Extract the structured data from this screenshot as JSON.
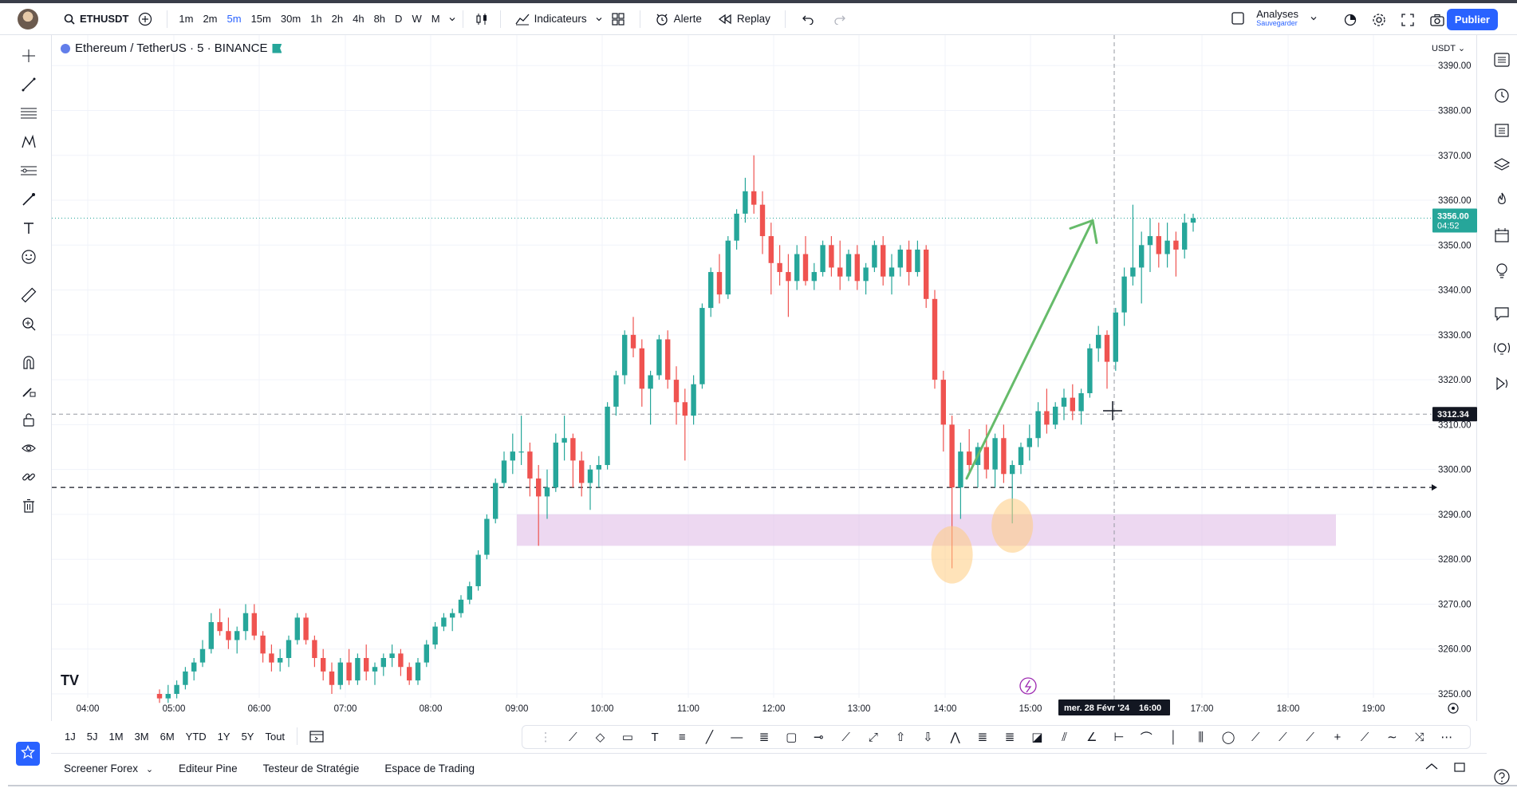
{
  "topbar": {
    "symbol": "ETHUSDT",
    "timeframes": [
      "1m",
      "2m",
      "5m",
      "15m",
      "30m",
      "1h",
      "2h",
      "4h",
      "8h",
      "D",
      "W",
      "M"
    ],
    "active_timeframe": "5m",
    "indicators_label": "Indicateurs",
    "alert_label": "Alerte",
    "replay_label": "Replay",
    "analyses_label": "Analyses",
    "analyses_sub": "Sauvegarder",
    "publish_label": "Publier"
  },
  "legend": {
    "title": "Ethereum / TetherUS · 5 · BINANCE",
    "currency": "USDT"
  },
  "price_scale": {
    "ticks": [
      "3390.00",
      "3380.00",
      "3370.00",
      "3360.00",
      "3350.00",
      "3340.00",
      "3330.00",
      "3320.00",
      "3310.00",
      "3300.00",
      "3290.00",
      "3280.00",
      "3270.00",
      "3260.00",
      "3250.00"
    ],
    "last_price": "3356.00",
    "countdown": "04:52",
    "crosshair_price": "3312.34"
  },
  "time_scale": {
    "ticks": [
      "04:00",
      "05:00",
      "06:00",
      "07:00",
      "08:00",
      "09:00",
      "10:00",
      "11:00",
      "12:00",
      "13:00",
      "14:00",
      "15:00",
      "17:00",
      "18:00",
      "19:00"
    ],
    "crosshair_date": "mer. 28 Févr '24",
    "crosshair_time": "16:00"
  },
  "range_buttons": [
    "1J",
    "5J",
    "1M",
    "3M",
    "6M",
    "YTD",
    "1Y",
    "5Y",
    "Tout"
  ],
  "bottom_tabs": [
    "Screener Forex",
    "Editeur Pine",
    "Testeur de Stratégie",
    "Espace de Trading"
  ],
  "colors": {
    "up": "#26a69a",
    "down": "#ef5350",
    "zone": "#e1bee7",
    "highlight": "#ffcc80",
    "arrow": "#66bb6a",
    "accent": "#2962ff"
  },
  "chart_data": {
    "type": "candlestick",
    "xlabel": "",
    "ylabel": "",
    "ylim": [
      3248,
      3392
    ],
    "support_zone": [
      3283,
      3290
    ],
    "dashed_level": 3296,
    "crosshair_price": 3312.34,
    "last_price": 3356,
    "candles": [
      [
        3250,
        3251,
        3248,
        3249
      ],
      [
        3249,
        3252,
        3248,
        3250
      ],
      [
        3250,
        3253,
        3249,
        3252
      ],
      [
        3252,
        3256,
        3251,
        3255
      ],
      [
        3255,
        3258,
        3253,
        3257
      ],
      [
        3257,
        3262,
        3256,
        3260
      ],
      [
        3260,
        3268,
        3259,
        3266
      ],
      [
        3266,
        3269,
        3263,
        3264
      ],
      [
        3264,
        3267,
        3260,
        3262
      ],
      [
        3262,
        3265,
        3259,
        3264
      ],
      [
        3264,
        3270,
        3262,
        3268
      ],
      [
        3268,
        3270,
        3262,
        3263
      ],
      [
        3263,
        3264,
        3257,
        3259
      ],
      [
        3259,
        3261,
        3255,
        3257
      ],
      [
        3257,
        3260,
        3255,
        3258
      ],
      [
        3258,
        3263,
        3256,
        3262
      ],
      [
        3262,
        3268,
        3261,
        3267
      ],
      [
        3267,
        3268,
        3261,
        3262
      ],
      [
        3262,
        3263,
        3256,
        3258
      ],
      [
        3258,
        3260,
        3253,
        3255
      ],
      [
        3255,
        3257,
        3250,
        3252
      ],
      [
        3252,
        3258,
        3251,
        3257
      ],
      [
        3257,
        3260,
        3252,
        3253
      ],
      [
        3253,
        3259,
        3252,
        3258
      ],
      [
        3258,
        3261,
        3253,
        3255
      ],
      [
        3255,
        3257,
        3252,
        3256
      ],
      [
        3256,
        3259,
        3254,
        3258
      ],
      [
        3258,
        3261,
        3256,
        3259
      ],
      [
        3259,
        3260,
        3254,
        3256
      ],
      [
        3256,
        3257,
        3252,
        3253
      ],
      [
        3253,
        3258,
        3252,
        3257
      ],
      [
        3257,
        3262,
        3256,
        3261
      ],
      [
        3261,
        3266,
        3260,
        3265
      ],
      [
        3265,
        3268,
        3264,
        3267
      ],
      [
        3267,
        3269,
        3264,
        3268
      ],
      [
        3268,
        3272,
        3267,
        3271
      ],
      [
        3271,
        3275,
        3270,
        3274
      ],
      [
        3274,
        3282,
        3273,
        3281
      ],
      [
        3281,
        3290,
        3280,
        3289
      ],
      [
        3289,
        3298,
        3288,
        3297
      ],
      [
        3297,
        3304,
        3296,
        3302
      ],
      [
        3302,
        3308,
        3299,
        3304
      ],
      [
        3304,
        3312,
        3301,
        3304
      ],
      [
        3304,
        3306,
        3294,
        3298
      ],
      [
        3298,
        3301,
        3283,
        3294
      ],
      [
        3294,
        3300,
        3289,
        3296
      ],
      [
        3296,
        3308,
        3295,
        3306
      ],
      [
        3306,
        3312,
        3302,
        3307
      ],
      [
        3307,
        3308,
        3296,
        3302
      ],
      [
        3302,
        3304,
        3294,
        3297
      ],
      [
        3297,
        3301,
        3291,
        3300
      ],
      [
        3300,
        3303,
        3296,
        3301
      ],
      [
        3301,
        3315,
        3300,
        3314
      ],
      [
        3314,
        3322,
        3312,
        3321
      ],
      [
        3321,
        3331,
        3319,
        3330
      ],
      [
        3330,
        3334,
        3325,
        3327
      ],
      [
        3327,
        3329,
        3314,
        3318
      ],
      [
        3318,
        3322,
        3310,
        3321
      ],
      [
        3321,
        3330,
        3320,
        3329
      ],
      [
        3329,
        3331,
        3318,
        3320
      ],
      [
        3320,
        3323,
        3310,
        3315
      ],
      [
        3315,
        3318,
        3302,
        3312
      ],
      [
        3312,
        3321,
        3310,
        3319
      ],
      [
        3319,
        3337,
        3318,
        3336
      ],
      [
        3336,
        3345,
        3334,
        3344
      ],
      [
        3344,
        3348,
        3337,
        3339
      ],
      [
        3339,
        3352,
        3338,
        3351
      ],
      [
        3351,
        3358,
        3349,
        3357
      ],
      [
        3357,
        3365,
        3355,
        3362
      ],
      [
        3362,
        3370,
        3357,
        3359
      ],
      [
        3359,
        3362,
        3348,
        3352
      ],
      [
        3352,
        3355,
        3339,
        3346
      ],
      [
        3346,
        3350,
        3341,
        3344
      ],
      [
        3344,
        3348,
        3334,
        3342
      ],
      [
        3342,
        3350,
        3340,
        3348
      ],
      [
        3348,
        3352,
        3341,
        3342
      ],
      [
        3342,
        3346,
        3340,
        3344
      ],
      [
        3344,
        3351,
        3343,
        3350
      ],
      [
        3350,
        3352,
        3343,
        3345
      ],
      [
        3345,
        3351,
        3340,
        3343
      ],
      [
        3343,
        3349,
        3342,
        3348
      ],
      [
        3348,
        3350,
        3340,
        3342
      ],
      [
        3342,
        3346,
        3339,
        3345
      ],
      [
        3345,
        3351,
        3344,
        3350
      ],
      [
        3350,
        3352,
        3341,
        3343
      ],
      [
        3343,
        3348,
        3339,
        3345
      ],
      [
        3345,
        3350,
        3343,
        3349
      ],
      [
        3349,
        3351,
        3341,
        3344
      ],
      [
        3344,
        3351,
        3343,
        3349
      ],
      [
        3349,
        3350,
        3336,
        3338
      ],
      [
        3338,
        3340,
        3318,
        3320
      ],
      [
        3320,
        3322,
        3304,
        3310
      ],
      [
        3310,
        3312,
        3278,
        3296
      ],
      [
        3296,
        3306,
        3289,
        3304
      ],
      [
        3304,
        3309,
        3299,
        3301
      ],
      [
        3301,
        3306,
        3296,
        3305
      ],
      [
        3305,
        3310,
        3298,
        3300
      ],
      [
        3300,
        3308,
        3296,
        3307
      ],
      [
        3307,
        3310,
        3297,
        3299
      ],
      [
        3299,
        3302,
        3288,
        3301
      ],
      [
        3301,
        3306,
        3299,
        3305
      ],
      [
        3305,
        3310,
        3302,
        3307
      ],
      [
        3307,
        3315,
        3305,
        3313
      ],
      [
        3313,
        3318,
        3308,
        3310
      ],
      [
        3310,
        3315,
        3309,
        3314
      ],
      [
        3314,
        3318,
        3311,
        3316
      ],
      [
        3316,
        3319,
        3311,
        3313
      ],
      [
        3313,
        3318,
        3310,
        3317
      ],
      [
        3317,
        3328,
        3316,
        3327
      ],
      [
        3327,
        3332,
        3324,
        3330
      ],
      [
        3330,
        3331,
        3318,
        3324
      ],
      [
        3324,
        3336,
        3322,
        3335
      ],
      [
        3335,
        3345,
        3332,
        3343
      ],
      [
        3343,
        3359,
        3341,
        3345
      ],
      [
        3345,
        3353,
        3337,
        3350
      ],
      [
        3350,
        3356,
        3344,
        3352
      ],
      [
        3352,
        3355,
        3345,
        3348
      ],
      [
        3348,
        3355,
        3345,
        3351
      ],
      [
        3351,
        3353,
        3343,
        3349
      ],
      [
        3349,
        3357,
        3347,
        3355
      ],
      [
        3355,
        3357,
        3353,
        3356
      ]
    ]
  }
}
